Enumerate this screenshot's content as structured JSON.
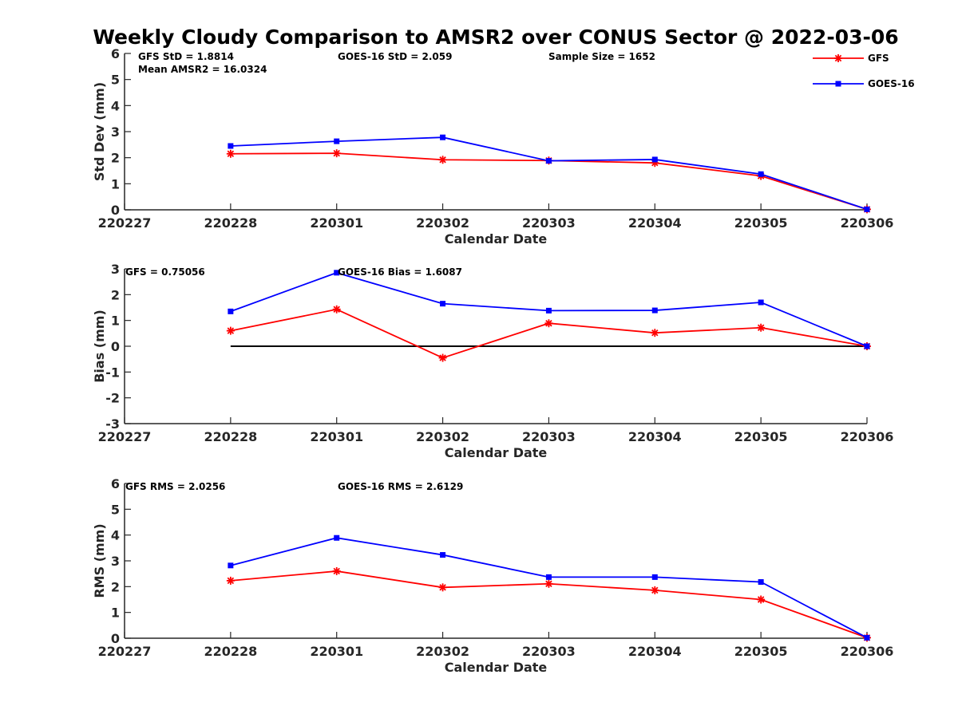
{
  "title": "Weekly Cloudy Comparison to AMSR2 over CONUS Sector @ 2022-03-06",
  "legend": {
    "placement": "top-right",
    "items": [
      {
        "name": "GFS",
        "color": "#ff0000",
        "marker": "asterisk"
      },
      {
        "name": "GOES-16",
        "color": "#0000ff",
        "marker": "square"
      }
    ]
  },
  "chart_data": [
    {
      "type": "line",
      "xlabel": "Calendar Date",
      "ylabel": "Std Dev (mm)",
      "x_ticks": [
        "220227",
        "220228",
        "220301",
        "220302",
        "220303",
        "220304",
        "220305",
        "220306"
      ],
      "ylim": [
        0,
        6
      ],
      "y_ticks": [
        "0",
        "1",
        "2",
        "3",
        "4",
        "5",
        "6"
      ],
      "series": [
        {
          "name": "GFS",
          "color": "#ff0000",
          "x": [
            "220228",
            "220301",
            "220302",
            "220303",
            "220304",
            "220305",
            "220306"
          ],
          "values": [
            2.15,
            2.17,
            1.92,
            1.89,
            1.8,
            1.3,
            0.02
          ]
        },
        {
          "name": "GOES-16",
          "color": "#0000ff",
          "x": [
            "220228",
            "220301",
            "220302",
            "220303",
            "220304",
            "220305",
            "220306"
          ],
          "values": [
            2.45,
            2.63,
            2.78,
            1.88,
            1.93,
            1.37,
            0.02
          ]
        }
      ],
      "annotations": [
        "GFS StD = 1.8814",
        "GOES-16 StD = 2.059",
        "Sample Size = 1652",
        "Mean AMSR2 = 16.0324"
      ]
    },
    {
      "type": "line",
      "xlabel": "Calendar Date",
      "ylabel": "Bias (mm)",
      "x_ticks": [
        "220227",
        "220228",
        "220301",
        "220302",
        "220303",
        "220304",
        "220305",
        "220306"
      ],
      "ylim": [
        -3,
        3
      ],
      "y_ticks": [
        "-3",
        "-2",
        "-1",
        "0",
        "1",
        "2",
        "3"
      ],
      "zero_line": true,
      "series": [
        {
          "name": "GFS",
          "color": "#ff0000",
          "x": [
            "220228",
            "220301",
            "220302",
            "220303",
            "220304",
            "220305",
            "220306"
          ],
          "values": [
            0.6,
            1.43,
            -0.45,
            0.89,
            0.52,
            0.72,
            0.0
          ]
        },
        {
          "name": "GOES-16",
          "color": "#0000ff",
          "x": [
            "220228",
            "220301",
            "220302",
            "220303",
            "220304",
            "220305",
            "220306"
          ],
          "values": [
            1.35,
            2.85,
            1.65,
            1.38,
            1.39,
            1.7,
            0.0
          ]
        }
      ],
      "annotations": [
        "GFS = 0.75056",
        "GOES-16 Bias  = 1.6087"
      ]
    },
    {
      "type": "line",
      "xlabel": "Calendar Date",
      "ylabel": "RMS (mm)",
      "x_ticks": [
        "220227",
        "220228",
        "220301",
        "220302",
        "220303",
        "220304",
        "220305",
        "220306"
      ],
      "ylim": [
        0,
        6
      ],
      "y_ticks": [
        "0",
        "1",
        "2",
        "3",
        "4",
        "5",
        "6"
      ],
      "series": [
        {
          "name": "GFS",
          "color": "#ff0000",
          "x": [
            "220228",
            "220301",
            "220302",
            "220303",
            "220304",
            "220305",
            "220306"
          ],
          "values": [
            2.23,
            2.6,
            1.97,
            2.11,
            1.86,
            1.5,
            0.02
          ]
        },
        {
          "name": "GOES-16",
          "color": "#0000ff",
          "x": [
            "220228",
            "220301",
            "220302",
            "220303",
            "220304",
            "220305",
            "220306"
          ],
          "values": [
            2.82,
            3.89,
            3.23,
            2.37,
            2.37,
            2.18,
            0.02
          ]
        }
      ],
      "annotations": [
        "GFS RMS = 2.0256",
        "GOES-16 RMS = 2.6129"
      ]
    }
  ]
}
